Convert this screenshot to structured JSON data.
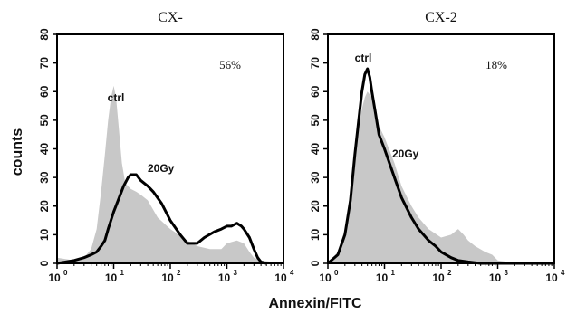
{
  "chart_data": [
    {
      "type": "area",
      "title": "CX-",
      "xlabel": "Annexin/FITC",
      "ylabel": "counts",
      "x_scale": "log",
      "xlim": [
        1,
        10000
      ],
      "ylim": [
        0,
        80
      ],
      "x_ticks": [
        "10",
        "10",
        "10",
        "10",
        "10"
      ],
      "x_tick_exponents": [
        "0",
        "1",
        "2",
        "3",
        "4"
      ],
      "y_ticks": [
        "0",
        "10",
        "20",
        "30",
        "40",
        "50",
        "60",
        "70",
        "80"
      ],
      "annotations": {
        "ctrl": "ctrl",
        "treated": "20Gy",
        "percent": "56%"
      },
      "series": [
        {
          "name": "ctrl",
          "style": "gray filled",
          "points": [
            [
              1,
              2
            ],
            [
              2,
              1
            ],
            [
              3,
              2
            ],
            [
              4,
              5
            ],
            [
              5,
              12
            ],
            [
              6,
              25
            ],
            [
              7,
              38
            ],
            [
              8,
              50
            ],
            [
              9,
              58
            ],
            [
              10,
              62
            ],
            [
              11,
              58
            ],
            [
              12,
              50
            ],
            [
              14,
              35
            ],
            [
              16,
              28
            ],
            [
              20,
              26
            ],
            [
              25,
              25
            ],
            [
              30,
              24
            ],
            [
              40,
              22
            ],
            [
              60,
              16
            ],
            [
              100,
              12
            ],
            [
              200,
              8
            ],
            [
              300,
              6
            ],
            [
              500,
              5
            ],
            [
              800,
              5
            ],
            [
              1000,
              7
            ],
            [
              1500,
              8
            ],
            [
              2000,
              7
            ],
            [
              2500,
              4
            ],
            [
              3000,
              2
            ],
            [
              4000,
              1
            ],
            [
              10000,
              0
            ]
          ]
        },
        {
          "name": "20Gy",
          "style": "black line",
          "points": [
            [
              1,
              0
            ],
            [
              2,
              1
            ],
            [
              3,
              2
            ],
            [
              4,
              3
            ],
            [
              5,
              4
            ],
            [
              6,
              6
            ],
            [
              7,
              8
            ],
            [
              8,
              12
            ],
            [
              10,
              18
            ],
            [
              12,
              22
            ],
            [
              15,
              27
            ],
            [
              18,
              30
            ],
            [
              20,
              31
            ],
            [
              25,
              31
            ],
            [
              30,
              29
            ],
            [
              40,
              27
            ],
            [
              50,
              25
            ],
            [
              70,
              21
            ],
            [
              100,
              15
            ],
            [
              150,
              10
            ],
            [
              200,
              7
            ],
            [
              300,
              7
            ],
            [
              400,
              9
            ],
            [
              600,
              11
            ],
            [
              800,
              12
            ],
            [
              1000,
              13
            ],
            [
              1200,
              13
            ],
            [
              1500,
              14
            ],
            [
              1800,
              13
            ],
            [
              2000,
              12
            ],
            [
              2500,
              9
            ],
            [
              3000,
              5
            ],
            [
              3500,
              2
            ],
            [
              4000,
              0.5
            ],
            [
              5000,
              0
            ]
          ]
        }
      ]
    },
    {
      "type": "area",
      "title": "CX-2",
      "xlabel": "Annexin/FITC",
      "ylabel": "",
      "x_scale": "log",
      "xlim": [
        1,
        10000
      ],
      "ylim": [
        0,
        80
      ],
      "x_ticks": [
        "10",
        "10",
        "10",
        "10",
        "10"
      ],
      "x_tick_exponents": [
        "0",
        "1",
        "2",
        "3",
        "4"
      ],
      "y_ticks": [
        "0",
        "10",
        "20",
        "30",
        "40",
        "50",
        "60",
        "70",
        "80"
      ],
      "annotations": {
        "ctrl": "ctrl",
        "treated": "20Gy",
        "percent": "18%"
      },
      "series": [
        {
          "name": "ctrl",
          "style": "gray filled",
          "points": [
            [
              1,
              0
            ],
            [
              1.5,
              4
            ],
            [
              2,
              12
            ],
            [
              2.5,
              25
            ],
            [
              3,
              40
            ],
            [
              3.5,
              48
            ],
            [
              4,
              54
            ],
            [
              4.5,
              58
            ],
            [
              5,
              60
            ],
            [
              6,
              58
            ],
            [
              7,
              54
            ],
            [
              8,
              48
            ],
            [
              10,
              44
            ],
            [
              15,
              35
            ],
            [
              20,
              27
            ],
            [
              30,
              20
            ],
            [
              40,
              16
            ],
            [
              60,
              12
            ],
            [
              100,
              9
            ],
            [
              150,
              10
            ],
            [
              200,
              12
            ],
            [
              250,
              10
            ],
            [
              300,
              8
            ],
            [
              400,
              6
            ],
            [
              600,
              4
            ],
            [
              800,
              3
            ],
            [
              1000,
              1
            ],
            [
              1500,
              0.5
            ],
            [
              10000,
              0
            ]
          ]
        },
        {
          "name": "20Gy",
          "style": "black line",
          "points": [
            [
              1,
              0
            ],
            [
              1.5,
              3
            ],
            [
              2,
              10
            ],
            [
              2.5,
              22
            ],
            [
              3,
              38
            ],
            [
              3.5,
              50
            ],
            [
              4,
              60
            ],
            [
              4.5,
              66
            ],
            [
              5,
              68
            ],
            [
              5.5,
              65
            ],
            [
              6,
              60
            ],
            [
              7,
              52
            ],
            [
              8,
              45
            ],
            [
              10,
              40
            ],
            [
              15,
              30
            ],
            [
              20,
              23
            ],
            [
              30,
              16
            ],
            [
              40,
              12
            ],
            [
              60,
              8
            ],
            [
              80,
              6
            ],
            [
              100,
              4
            ],
            [
              150,
              2
            ],
            [
              200,
              1
            ],
            [
              300,
              0.5
            ],
            [
              500,
              0
            ],
            [
              10000,
              0
            ]
          ]
        }
      ]
    }
  ]
}
